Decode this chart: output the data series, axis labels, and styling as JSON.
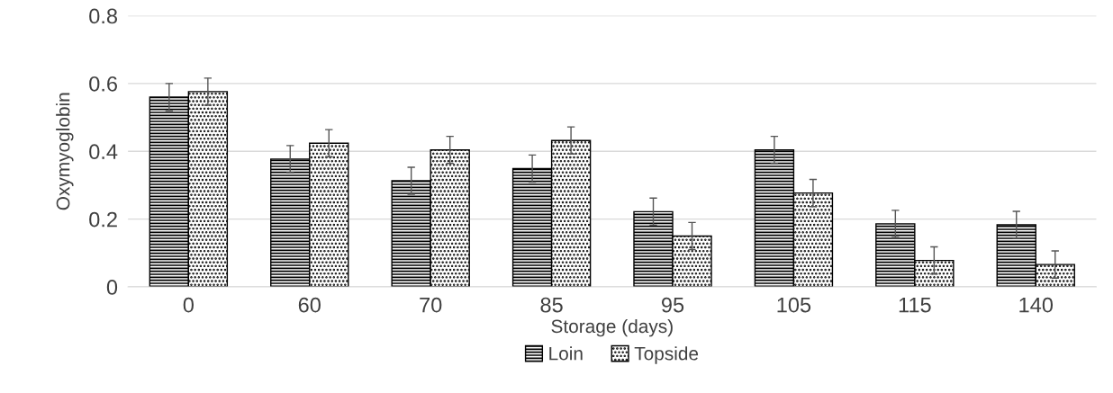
{
  "chart_data": {
    "type": "bar",
    "xlabel": "Storage (days)",
    "ylabel": "Oxymyoglobin",
    "categories": [
      "0",
      "60",
      "70",
      "85",
      "95",
      "105",
      "115",
      "140"
    ],
    "series": [
      {
        "name": "Loin",
        "color": "#000000",
        "values": [
          0.56,
          0.377,
          0.313,
          0.349,
          0.222,
          0.404,
          0.186,
          0.183
        ],
        "errors": [
          0.04,
          0.04,
          0.04,
          0.04,
          0.04,
          0.04,
          0.04,
          0.04
        ]
      },
      {
        "name": "Topside",
        "color": "#000000",
        "values": [
          0.576,
          0.424,
          0.404,
          0.432,
          0.15,
          0.277,
          0.078,
          0.066
        ],
        "errors": [
          0.04,
          0.04,
          0.04,
          0.04,
          0.04,
          0.04,
          0.04,
          0.04
        ]
      }
    ],
    "ylim": [
      0,
      0.8
    ],
    "yticks": [
      {
        "value": 0,
        "label": "0"
      },
      0.2,
      0.4,
      0.6,
      0.8
    ],
    "grid": "y",
    "legend": "bottom"
  }
}
